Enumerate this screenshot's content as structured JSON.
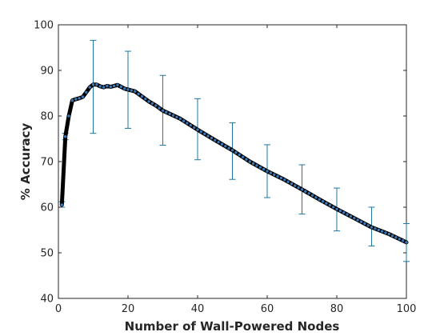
{
  "chart_data": {
    "type": "line",
    "title": "",
    "xlabel": "Number of Wall-Powered Nodes",
    "ylabel": "% Accuracy",
    "xlim": [
      0,
      100
    ],
    "ylim": [
      40,
      100
    ],
    "x_ticks": [
      0,
      20,
      40,
      60,
      80,
      100
    ],
    "y_ticks": [
      40,
      50,
      60,
      70,
      80,
      90,
      100
    ],
    "grid": false,
    "legend": "none",
    "colors": {
      "line": "#000000",
      "markers": "#3a78b8",
      "errorbars": "#1f77a0",
      "axes": "#262626"
    },
    "series": [
      {
        "x": [
          1,
          2,
          3,
          4,
          5,
          6,
          7,
          8,
          9,
          10,
          11,
          12,
          13,
          14,
          15,
          16,
          17,
          18,
          19,
          20,
          22,
          24,
          26,
          28,
          30,
          35,
          40,
          45,
          50,
          55,
          60,
          65,
          70,
          75,
          80,
          85,
          90,
          95,
          100
        ],
        "y": [
          60.5,
          75.5,
          80,
          83.4,
          83.7,
          83.9,
          84.2,
          85.2,
          86.3,
          86.9,
          86.9,
          86.5,
          86.3,
          86.6,
          86.4,
          86.6,
          86.8,
          86.4,
          86.0,
          85.8,
          85.4,
          84.3,
          83.2,
          82.3,
          81.2,
          79.4,
          77.0,
          74.7,
          72.5,
          70.0,
          67.9,
          66.0,
          63.9,
          61.7,
          59.6,
          57.6,
          55.6,
          54.1,
          52.3
        ]
      }
    ],
    "error_bars": [
      {
        "x": 1,
        "low": 60.0,
        "high": 61.2
      },
      {
        "x": 2,
        "low": 74.8,
        "high": 76.2
      },
      {
        "x": 10,
        "low": 76.2,
        "high": 96.6
      },
      {
        "x": 20,
        "low": 77.3,
        "high": 94.2
      },
      {
        "x": 30,
        "low": 73.6,
        "high": 88.9
      },
      {
        "x": 40,
        "low": 70.4,
        "high": 83.8
      },
      {
        "x": 50,
        "low": 66.1,
        "high": 78.5
      },
      {
        "x": 60,
        "low": 62.1,
        "high": 73.7
      },
      {
        "x": 70,
        "low": 58.5,
        "high": 69.3
      },
      {
        "x": 80,
        "low": 54.8,
        "high": 64.2
      },
      {
        "x": 90,
        "low": 51.5,
        "high": 60.0
      },
      {
        "x": 100,
        "low": 48.1,
        "high": 56.4
      }
    ]
  }
}
